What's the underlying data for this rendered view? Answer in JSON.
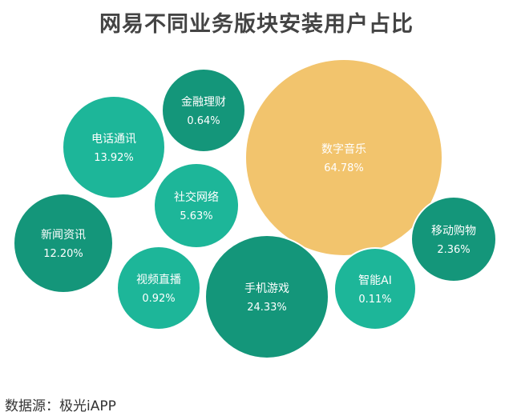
{
  "chart_data": {
    "type": "bubble",
    "title": "网易不同业务版块安装用户占比",
    "categories": [
      "数字音乐",
      "手机游戏",
      "电话通讯",
      "新闻资讯",
      "社交网络",
      "移动购物",
      "视频直播",
      "金融理财",
      "智能AI"
    ],
    "values": [
      64.78,
      24.33,
      13.92,
      12.2,
      5.63,
      2.36,
      0.92,
      0.64,
      0.11
    ],
    "value_labels": [
      "64.78%",
      "24.33%",
      "13.92%",
      "12.20%",
      "5.63%",
      "2.36%",
      "0.92%",
      "0.64%",
      "0.11%"
    ],
    "unit": "%",
    "colors": {
      "数字音乐": "#F2C46D",
      "手机游戏": "#14967A",
      "电话通讯": "#1DB699",
      "新闻资讯": "#14967A",
      "社交网络": "#1DB699",
      "移动购物": "#14967A",
      "视频直播": "#1DB699",
      "金融理财": "#14967A",
      "智能AI": "#1DB699"
    }
  },
  "source": "数据源：极光iAPP"
}
